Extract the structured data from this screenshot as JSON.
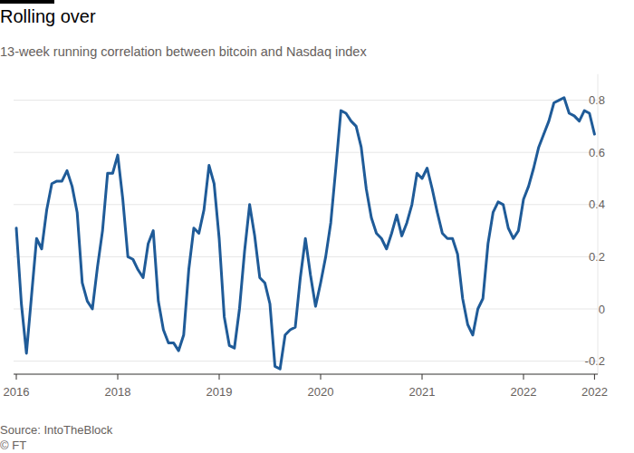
{
  "chart_data": {
    "type": "line",
    "title": "Rolling over",
    "subtitle": "13-week running correlation between bitcoin and Nasdaq index",
    "source": "Source: IntoTheBlock",
    "credit": "© FT",
    "color": "#1f5b98",
    "grid": true,
    "categories": [
      "2016",
      null,
      null,
      null,
      null,
      null,
      null,
      null,
      null,
      null,
      null,
      null,
      null,
      null,
      null,
      null,
      null,
      null,
      null,
      null,
      "2018",
      null,
      null,
      null,
      null,
      null,
      null,
      null,
      null,
      null,
      null,
      null,
      null,
      null,
      null,
      null,
      null,
      null,
      null,
      null,
      "2019",
      null,
      null,
      null,
      null,
      null,
      null,
      null,
      null,
      null,
      null,
      null,
      null,
      null,
      null,
      null,
      null,
      null,
      null,
      null,
      "2020",
      null,
      null,
      null,
      null,
      null,
      null,
      null,
      null,
      null,
      null,
      null,
      null,
      null,
      null,
      null,
      null,
      null,
      null,
      null,
      "2021",
      null,
      null,
      null,
      null,
      null,
      null,
      null,
      null,
      null,
      null,
      null,
      null,
      null,
      null,
      null,
      null,
      null,
      null,
      null,
      "2022",
      null,
      null,
      null,
      null,
      null,
      null,
      null,
      null,
      null,
      null,
      null,
      null,
      null,
      "2022"
    ],
    "values": [
      0.31,
      0.02,
      -0.17,
      0.05,
      0.27,
      0.23,
      0.38,
      0.48,
      0.49,
      0.49,
      0.53,
      0.47,
      0.37,
      0.1,
      0.03,
      0.0,
      0.16,
      0.3,
      0.52,
      0.52,
      0.59,
      0.42,
      0.2,
      0.19,
      0.15,
      0.12,
      0.25,
      0.3,
      0.03,
      -0.08,
      -0.13,
      -0.13,
      -0.16,
      -0.1,
      0.15,
      0.31,
      0.29,
      0.38,
      0.55,
      0.48,
      0.27,
      -0.03,
      -0.14,
      -0.15,
      0.0,
      0.22,
      0.4,
      0.28,
      0.12,
      0.1,
      0.02,
      -0.22,
      -0.23,
      -0.1,
      -0.08,
      -0.07,
      0.12,
      0.27,
      0.13,
      0.01,
      0.1,
      0.2,
      0.33,
      0.54,
      0.76,
      0.75,
      0.72,
      0.7,
      0.62,
      0.46,
      0.35,
      0.29,
      0.27,
      0.23,
      0.29,
      0.36,
      0.28,
      0.33,
      0.4,
      0.52,
      0.5,
      0.54,
      0.46,
      0.37,
      0.29,
      0.27,
      0.27,
      0.21,
      0.04,
      -0.06,
      -0.1,
      0.0,
      0.04,
      0.25,
      0.37,
      0.41,
      0.4,
      0.31,
      0.27,
      0.3,
      0.42,
      0.47,
      0.54,
      0.62,
      0.67,
      0.72,
      0.79,
      0.8,
      0.81,
      0.75,
      0.74,
      0.72,
      0.76,
      0.75,
      0.67
    ],
    "ylim": [
      -0.25,
      0.9
    ],
    "yticks": [
      -0.2,
      0,
      0.2,
      0.4,
      0.6,
      0.8
    ]
  }
}
